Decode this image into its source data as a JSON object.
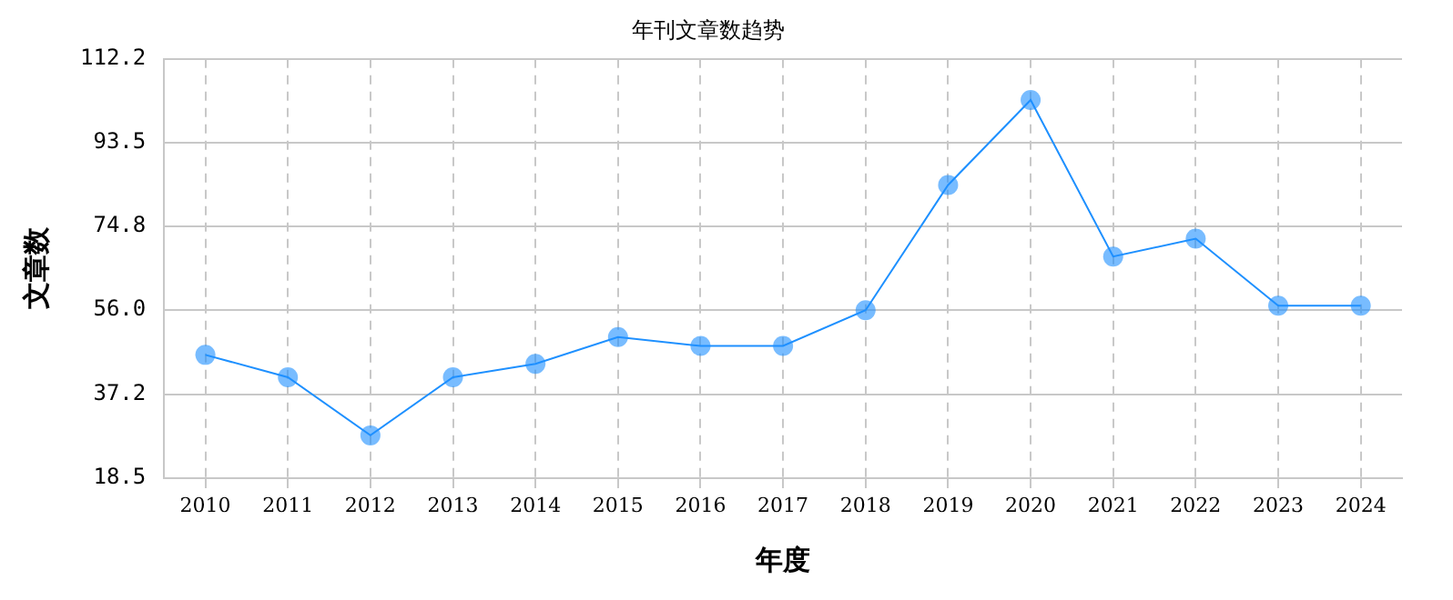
{
  "chart_data": {
    "type": "line",
    "title": "年刊文章数趋势",
    "xlabel": "年度",
    "ylabel": "文章数",
    "categories": [
      "2010",
      "2011",
      "2012",
      "2013",
      "2014",
      "2015",
      "2016",
      "2017",
      "2018",
      "2019",
      "2020",
      "2021",
      "2022",
      "2023",
      "2024"
    ],
    "series": [
      {
        "color": "#1e90ff",
        "values": [
          46,
          41,
          28,
          41,
          44,
          50,
          48,
          48,
          56,
          84,
          103,
          68,
          72,
          57,
          57
        ]
      }
    ],
    "ylim": [
      18.5,
      112.2
    ],
    "yticks": [
      18.5,
      37.2,
      {
        "value": 56,
        "label": "56.0"
      },
      74.8,
      93.5,
      112.2
    ],
    "grid": true,
    "marker": "circle",
    "line_style": "solid",
    "legend": false
  }
}
